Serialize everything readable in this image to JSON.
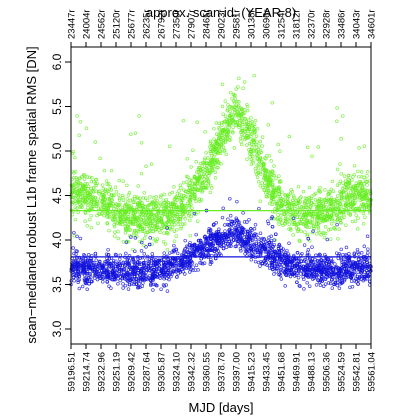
{
  "chart_data": {
    "type": "scatter",
    "title": "approx. scan id. (YEAR 8)",
    "xlabel": "MJD [days]",
    "ylabel": "scan−medianed robust L1b frame spatial RMS [DN]",
    "xlim": [
      59196.51,
      59561.04
    ],
    "ylim": [
      3.0,
      6.0
    ],
    "y_ticks": [
      "3.0",
      "3.5",
      "4.0",
      "4.5",
      "5.0",
      "5.5",
      "6.0"
    ],
    "x_ticks": [
      "59196.51",
      "59214.74",
      "59232.96",
      "59251.19",
      "59269.42",
      "59287.64",
      "59305.87",
      "59324.10",
      "59342.32",
      "59360.55",
      "59378.78",
      "59397.00",
      "59415.23",
      "59433.45",
      "59451.68",
      "59469.91",
      "59488.13",
      "59506.36",
      "59524.59",
      "59542.81",
      "59561.04"
    ],
    "top_ticks": [
      "23447r",
      "24004r",
      "24562r",
      "25120r",
      "25677r",
      "26235r",
      "26792r",
      "27350r",
      "27907r",
      "28465r",
      "29023r",
      "29581r",
      "30138r",
      "30696r",
      "31254r",
      "31812r",
      "32370r",
      "32928r",
      "33486r",
      "34043r",
      "34601r"
    ],
    "grid": false,
    "series": [
      {
        "color": "#66ee22",
        "median": 4.33,
        "profile": [
          {
            "x": 59196.51,
            "y": 4.55
          },
          {
            "x": 59214.74,
            "y": 4.55
          },
          {
            "x": 59232.96,
            "y": 4.5
          },
          {
            "x": 59251.19,
            "y": 4.4
          },
          {
            "x": 59269.42,
            "y": 4.33
          },
          {
            "x": 59287.64,
            "y": 4.3
          },
          {
            "x": 59305.87,
            "y": 4.3
          },
          {
            "x": 59324.1,
            "y": 4.38
          },
          {
            "x": 59342.32,
            "y": 4.55
          },
          {
            "x": 59360.55,
            "y": 4.8
          },
          {
            "x": 59378.78,
            "y": 5.2
          },
          {
            "x": 59397.0,
            "y": 5.5
          },
          {
            "x": 59415.23,
            "y": 5.2
          },
          {
            "x": 59433.45,
            "y": 4.75
          },
          {
            "x": 59451.68,
            "y": 4.45
          },
          {
            "x": 59469.91,
            "y": 4.35
          },
          {
            "x": 59488.13,
            "y": 4.33
          },
          {
            "x": 59506.36,
            "y": 4.38
          },
          {
            "x": 59524.59,
            "y": 4.5
          },
          {
            "x": 59542.81,
            "y": 4.55
          },
          {
            "x": 59561.04,
            "y": 4.55
          }
        ]
      },
      {
        "color": "#1111dd",
        "median": 3.81,
        "profile": [
          {
            "x": 59196.51,
            "y": 3.7
          },
          {
            "x": 59214.74,
            "y": 3.7
          },
          {
            "x": 59232.96,
            "y": 3.7
          },
          {
            "x": 59251.19,
            "y": 3.7
          },
          {
            "x": 59269.42,
            "y": 3.68
          },
          {
            "x": 59287.64,
            "y": 3.68
          },
          {
            "x": 59305.87,
            "y": 3.7
          },
          {
            "x": 59324.1,
            "y": 3.75
          },
          {
            "x": 59342.32,
            "y": 3.85
          },
          {
            "x": 59360.55,
            "y": 3.95
          },
          {
            "x": 59378.78,
            "y": 4.05
          },
          {
            "x": 59397.0,
            "y": 4.1
          },
          {
            "x": 59415.23,
            "y": 4.0
          },
          {
            "x": 59433.45,
            "y": 3.9
          },
          {
            "x": 59451.68,
            "y": 3.8
          },
          {
            "x": 59469.91,
            "y": 3.72
          },
          {
            "x": 59488.13,
            "y": 3.7
          },
          {
            "x": 59506.36,
            "y": 3.7
          },
          {
            "x": 59524.59,
            "y": 3.7
          },
          {
            "x": 59542.81,
            "y": 3.7
          },
          {
            "x": 59561.04,
            "y": 3.7
          }
        ]
      }
    ]
  }
}
